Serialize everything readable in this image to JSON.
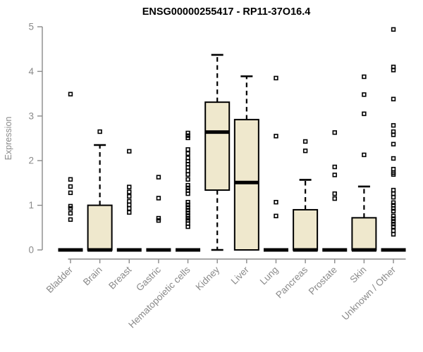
{
  "page": {
    "background": "#ffffff"
  },
  "chart_data": {
    "type": "boxplot",
    "title": "ENSG00000255417 - RP11-37O16.4",
    "xlabel": "",
    "ylabel": "Expression",
    "ylim": [
      0,
      5
    ],
    "yticks": [
      0,
      1,
      2,
      3,
      4,
      5
    ],
    "grid": false,
    "legend": "none",
    "colors": {
      "box_fill": "#efe8cd",
      "box_stroke": "#000000",
      "median": "#000000",
      "whisker": "#000000",
      "outlier": "#000000",
      "axis": "#8a8a8a",
      "tick_label": "#8a8a8a",
      "title": "#000000"
    },
    "categories": [
      "Bladder",
      "Brain",
      "Breast",
      "Gastric",
      "Hematopoietic cells",
      "Kidney",
      "Liver",
      "Lung",
      "Pancreas",
      "Prostate",
      "Skin",
      "Unknown / Other"
    ],
    "series": [
      {
        "category": "Bladder",
        "q1": 0,
        "median": 0,
        "q3": 0,
        "whisker_low": 0,
        "whisker_high": 0,
        "outliers": [
          0.68,
          0.82,
          0.93,
          0.98,
          1.28,
          1.42,
          1.58,
          3.49
        ]
      },
      {
        "category": "Brain",
        "q1": 0,
        "median": 0,
        "q3": 1.0,
        "whisker_low": 0,
        "whisker_high": 2.35,
        "outliers": [
          2.65
        ]
      },
      {
        "category": "Breast",
        "q1": 0,
        "median": 0,
        "q3": 0,
        "whisker_low": 0,
        "whisker_high": 0,
        "outliers": [
          0.84,
          0.93,
          1.01,
          1.09,
          1.2,
          1.3,
          1.41,
          2.21
        ]
      },
      {
        "category": "Gastric",
        "q1": 0,
        "median": 0,
        "q3": 0,
        "whisker_low": 0,
        "whisker_high": 0,
        "outliers": [
          0.66,
          0.71,
          1.16,
          1.63
        ]
      },
      {
        "category": "Hematopoietic cells",
        "q1": 0,
        "median": 0,
        "q3": 0,
        "whisker_low": 0,
        "whisker_high": 0,
        "outliers": [
          0.52,
          0.59,
          0.66,
          0.71,
          0.77,
          0.83,
          0.89,
          0.95,
          1.01,
          1.07,
          1.26,
          1.33,
          1.39,
          1.45,
          1.58,
          1.69,
          1.77,
          1.85,
          1.92,
          1.99,
          2.06,
          2.16,
          2.25,
          2.51,
          2.56,
          2.62
        ]
      },
      {
        "category": "Kidney",
        "q1": 1.34,
        "median": 2.64,
        "q3": 3.31,
        "whisker_low": 0,
        "whisker_high": 4.37,
        "outliers": []
      },
      {
        "category": "Liver",
        "q1": 0,
        "median": 1.51,
        "q3": 2.92,
        "whisker_low": 0,
        "whisker_high": 3.89,
        "outliers": []
      },
      {
        "category": "Lung",
        "q1": 0,
        "median": 0,
        "q3": 0,
        "whisker_low": 0,
        "whisker_high": 0,
        "outliers": [
          0.76,
          1.07,
          2.55,
          3.85
        ]
      },
      {
        "category": "Pancreas",
        "q1": 0,
        "median": 0,
        "q3": 0.9,
        "whisker_low": 0,
        "whisker_high": 1.57,
        "outliers": [
          2.22,
          2.43
        ]
      },
      {
        "category": "Prostate",
        "q1": 0,
        "median": 0,
        "q3": 0,
        "whisker_low": 0,
        "whisker_high": 0,
        "outliers": [
          1.15,
          1.26,
          1.68,
          1.86,
          2.63
        ]
      },
      {
        "category": "Skin",
        "q1": 0,
        "median": 0,
        "q3": 0.72,
        "whisker_low": 0,
        "whisker_high": 1.42,
        "outliers": [
          2.13,
          3.05,
          3.48,
          3.88
        ]
      },
      {
        "category": "Unknown / Other",
        "q1": 0,
        "median": 0,
        "q3": 0,
        "whisker_low": 0,
        "whisker_high": 0,
        "outliers": [
          0.35,
          0.43,
          0.52,
          0.58,
          0.64,
          0.7,
          0.76,
          0.87,
          0.93,
          1.0,
          1.06,
          1.18,
          1.26,
          1.34,
          1.69,
          1.73,
          1.81,
          2.05,
          2.37,
          2.58,
          2.65,
          2.79,
          3.38,
          4.03,
          4.1,
          4.94
        ]
      }
    ]
  }
}
